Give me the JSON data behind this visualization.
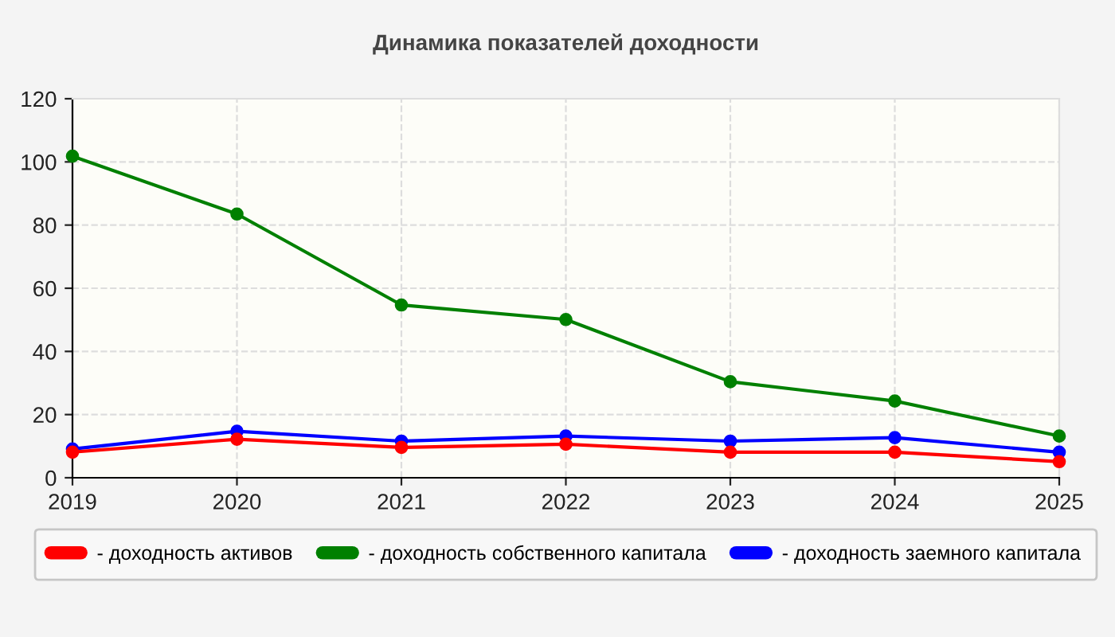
{
  "chart_data": {
    "type": "line",
    "title": "Динамика показателей доходности",
    "x": [
      2019,
      2020,
      2021,
      2022,
      2023,
      2024,
      2025
    ],
    "xlim": [
      2019,
      2025
    ],
    "xticks": [
      2019,
      2020,
      2021,
      2022,
      2023,
      2024,
      2025
    ],
    "ylim": [
      0,
      120
    ],
    "yticks": [
      0,
      20,
      40,
      60,
      80,
      100,
      120
    ],
    "grid": true,
    "legend": "bottom",
    "marker": "circle",
    "line_style": "solid",
    "series": [
      {
        "name": "- доходность активов",
        "color": "#ff0000",
        "values": [
          8.1,
          12.2,
          9.6,
          10.6,
          8.1,
          8.1,
          5.1
        ]
      },
      {
        "name": "- доходность собственного капитала",
        "color": "#008000",
        "values": [
          101.8,
          83.5,
          54.7,
          50.1,
          30.4,
          24.3,
          13.2
        ]
      },
      {
        "name": "- доходность заемного капитала",
        "color": "#0000ff",
        "values": [
          9.1,
          14.7,
          11.6,
          13.2,
          11.6,
          12.7,
          8.1
        ]
      }
    ]
  }
}
